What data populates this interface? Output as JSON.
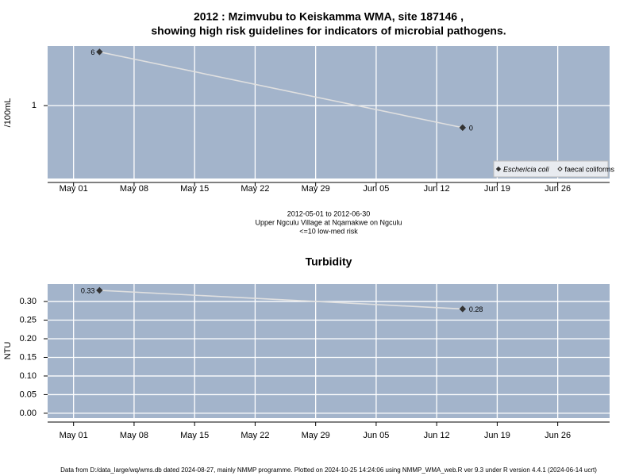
{
  "chart_data": [
    {
      "type": "line",
      "title": [
        "2012 : Mzimvubu to Keiskamma WMA, site 187146 ,",
        "showing high risk guidelines for indicators of microbial pathogens."
      ],
      "y_label": "/100mL",
      "notes": [
        "2012-05-01 to 2012-06-30",
        "Upper Ngculu Village at Nqamakwe on Ngculu",
        "<=10 low-med risk"
      ],
      "x": [
        "2012-05-04",
        "2012-06-15"
      ],
      "series": [
        {
          "name": "Eschericia coli",
          "color": "#333333",
          "marker": "filled",
          "values": [
            6,
            0.48
          ],
          "value_labels": [
            "6",
            "0"
          ]
        },
        {
          "name": "faecal coliforms",
          "color": "#333333",
          "marker": "open",
          "values": [
            null,
            null
          ]
        }
      ],
      "xlim": [
        "2012-04-28",
        "2012-07-02"
      ],
      "xticks": [
        {
          "value": "2012-05-01",
          "label": "May 01"
        },
        {
          "value": "2012-05-08",
          "label": "May 08"
        },
        {
          "value": "2012-05-15",
          "label": "May 15"
        },
        {
          "value": "2012-05-22",
          "label": "May 22"
        },
        {
          "value": "2012-05-29",
          "label": "May 29"
        },
        {
          "value": "2012-06-05",
          "label": "Jun 05"
        },
        {
          "value": "2012-06-12",
          "label": "Jun 12"
        },
        {
          "value": "2012-06-19",
          "label": "Jun 19"
        },
        {
          "value": "2012-06-26",
          "label": "Jun 26"
        }
      ],
      "ylim": [
        0.088,
        7.3
      ],
      "yticks": [
        1
      ],
      "log_scale": true,
      "grid": true,
      "legend": "bottom-right"
    },
    {
      "type": "line",
      "title": [
        "Turbidity"
      ],
      "y_label": "NTU",
      "x": [
        "2012-05-04",
        "2012-06-15"
      ],
      "series": [
        {
          "name": "Turbidity",
          "color": "#333333",
          "marker": "filled",
          "values": [
            0.33,
            0.28
          ]
        }
      ],
      "xlim": [
        "2012-04-28",
        "2012-07-02"
      ],
      "xticks": [
        {
          "value": "2012-05-01",
          "label": "May 01"
        },
        {
          "value": "2012-05-08",
          "label": "May 08"
        },
        {
          "value": "2012-05-15",
          "label": "May 15"
        },
        {
          "value": "2012-05-22",
          "label": "May 22"
        },
        {
          "value": "2012-05-29",
          "label": "May 29"
        },
        {
          "value": "2012-06-05",
          "label": "Jun 05"
        },
        {
          "value": "2012-06-12",
          "label": "Jun 12"
        },
        {
          "value": "2012-06-19",
          "label": "Jun 19"
        },
        {
          "value": "2012-06-26",
          "label": "Jun 26"
        }
      ],
      "ylim": [
        -0.013,
        0.347
      ],
      "yticks": [
        {
          "value": 0,
          "label": "0.00"
        },
        {
          "value": 0.05,
          "label": "0.05"
        },
        {
          "value": 0.1,
          "label": "0.10"
        },
        {
          "value": 0.15,
          "label": "0.15"
        },
        {
          "value": 0.2,
          "label": "0.20"
        },
        {
          "value": 0.25,
          "label": "0.25"
        },
        {
          "value": 0.3,
          "label": "0.30"
        }
      ],
      "log_scale": false,
      "grid": true
    }
  ],
  "footer": "Data from D:/data_large/wq/wms.db dated 2024-08-27, mainly NMMP programme. Plotted on 2024-10-25 14:24:06 using NMMP_WMA_web.R ver 9.3 under R version 4.4.1 (2024-06-14 ucrt)"
}
